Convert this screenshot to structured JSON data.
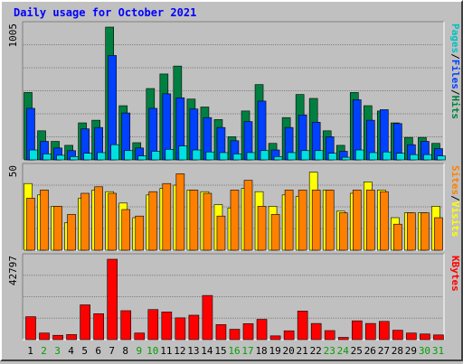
{
  "chart_data": [
    {
      "type": "bar",
      "panel": "hits",
      "title": "Daily usage for October 2021",
      "ylabel_parts": [
        {
          "text": "Pages",
          "color": "#00c0c0"
        },
        {
          "text": "/",
          "color": "#000000"
        },
        {
          "text": "Files",
          "color": "#0040ff"
        },
        {
          "text": "/",
          "color": "#000000"
        },
        {
          "text": "Hits",
          "color": "#008040"
        }
      ],
      "ymax_label": "1005",
      "ylim": [
        0,
        1005
      ],
      "grid": true,
      "categories": [
        "1",
        "2",
        "3",
        "4",
        "5",
        "6",
        "7",
        "8",
        "9",
        "10",
        "11",
        "12",
        "13",
        "14",
        "15",
        "16",
        "17",
        "18",
        "19",
        "20",
        "21",
        "22",
        "23",
        "24",
        "25",
        "26",
        "27",
        "28",
        "29",
        "30",
        "31"
      ],
      "series": [
        {
          "name": "Hits",
          "color": "#008040",
          "values": [
            510,
            220,
            140,
            110,
            280,
            300,
            1005,
            410,
            130,
            540,
            650,
            710,
            460,
            400,
            305,
            175,
            370,
            570,
            125,
            320,
            495,
            465,
            220,
            110,
            510,
            410,
            370,
            280,
            170,
            170,
            125
          ]
        },
        {
          "name": "Files",
          "color": "#0040ff",
          "values": [
            390,
            140,
            90,
            70,
            235,
            245,
            790,
            355,
            90,
            390,
            500,
            470,
            385,
            320,
            245,
            145,
            290,
            445,
            75,
            245,
            340,
            285,
            175,
            65,
            455,
            300,
            380,
            275,
            115,
            140,
            85
          ]
        },
        {
          "name": "Pages",
          "color": "#00e0e0",
          "values": [
            75,
            45,
            35,
            25,
            50,
            55,
            115,
            70,
            30,
            65,
            80,
            105,
            75,
            60,
            55,
            45,
            55,
            70,
            25,
            55,
            70,
            70,
            50,
            20,
            75,
            55,
            60,
            50,
            40,
            40,
            30
          ]
        }
      ]
    },
    {
      "type": "bar",
      "panel": "visits",
      "ylabel_parts": [
        {
          "text": "Sites",
          "color": "#ff8000"
        },
        {
          "text": "/",
          "color": "#000000"
        },
        {
          "text": "Visits",
          "color": "#ffff00"
        }
      ],
      "ymax_label": "50",
      "ylim": [
        0,
        50
      ],
      "grid": true,
      "categories": [
        "1",
        "2",
        "3",
        "4",
        "5",
        "6",
        "7",
        "8",
        "9",
        "10",
        "11",
        "12",
        "13",
        "14",
        "15",
        "16",
        "17",
        "18",
        "19",
        "20",
        "21",
        "22",
        "23",
        "24",
        "25",
        "26",
        "27",
        "28",
        "29",
        "30",
        "31"
      ],
      "series": [
        {
          "name": "Visits",
          "color": "#ffff00",
          "values": [
            41,
            34,
            27,
            17,
            32,
            37,
            36,
            29,
            20,
            34,
            38,
            40,
            37,
            36,
            28,
            26,
            38,
            36,
            27,
            34,
            33,
            48,
            37,
            24,
            35,
            42,
            37,
            20,
            23,
            23,
            27
          ]
        },
        {
          "name": "Sites",
          "color": "#ff8000",
          "values": [
            32,
            37,
            27,
            22,
            35,
            39,
            35,
            25,
            21,
            36,
            41,
            47,
            37,
            35,
            21,
            37,
            43,
            27,
            22,
            37,
            37,
            37,
            37,
            23,
            37,
            37,
            36,
            16,
            23,
            23,
            20
          ]
        }
      ]
    },
    {
      "type": "bar",
      "panel": "kbytes",
      "ylabel_parts": [
        {
          "text": "KBytes",
          "color": "#ff0000"
        }
      ],
      "ymax_label": "42797",
      "ylim": [
        0,
        42797
      ],
      "grid": true,
      "categories": [
        "1",
        "2",
        "3",
        "4",
        "5",
        "6",
        "7",
        "8",
        "9",
        "10",
        "11",
        "12",
        "13",
        "14",
        "15",
        "16",
        "17",
        "18",
        "19",
        "20",
        "21",
        "22",
        "23",
        "24",
        "25",
        "26",
        "27",
        "28",
        "29",
        "30",
        "31"
      ],
      "series": [
        {
          "name": "KBytes",
          "color": "#ff0000",
          "values": [
            12200,
            3500,
            2300,
            2700,
            18500,
            13800,
            42797,
            15400,
            3500,
            16000,
            14700,
            11600,
            13000,
            23500,
            8000,
            5500,
            8500,
            10800,
            2000,
            4700,
            15200,
            8600,
            4800,
            1200,
            10000,
            8600,
            9700,
            5000,
            3500,
            3000,
            2500
          ]
        }
      ],
      "xaxis_weekend": [
        "2",
        "3",
        "9",
        "10",
        "16",
        "17",
        "23",
        "24",
        "30",
        "31"
      ],
      "weekend_color": "#00a000",
      "weekday_color": "#000000"
    }
  ],
  "colors": {
    "background": "#c0c0c0",
    "plot": "#c0c0c0",
    "title": "#0000ff",
    "grid": "#808080"
  }
}
